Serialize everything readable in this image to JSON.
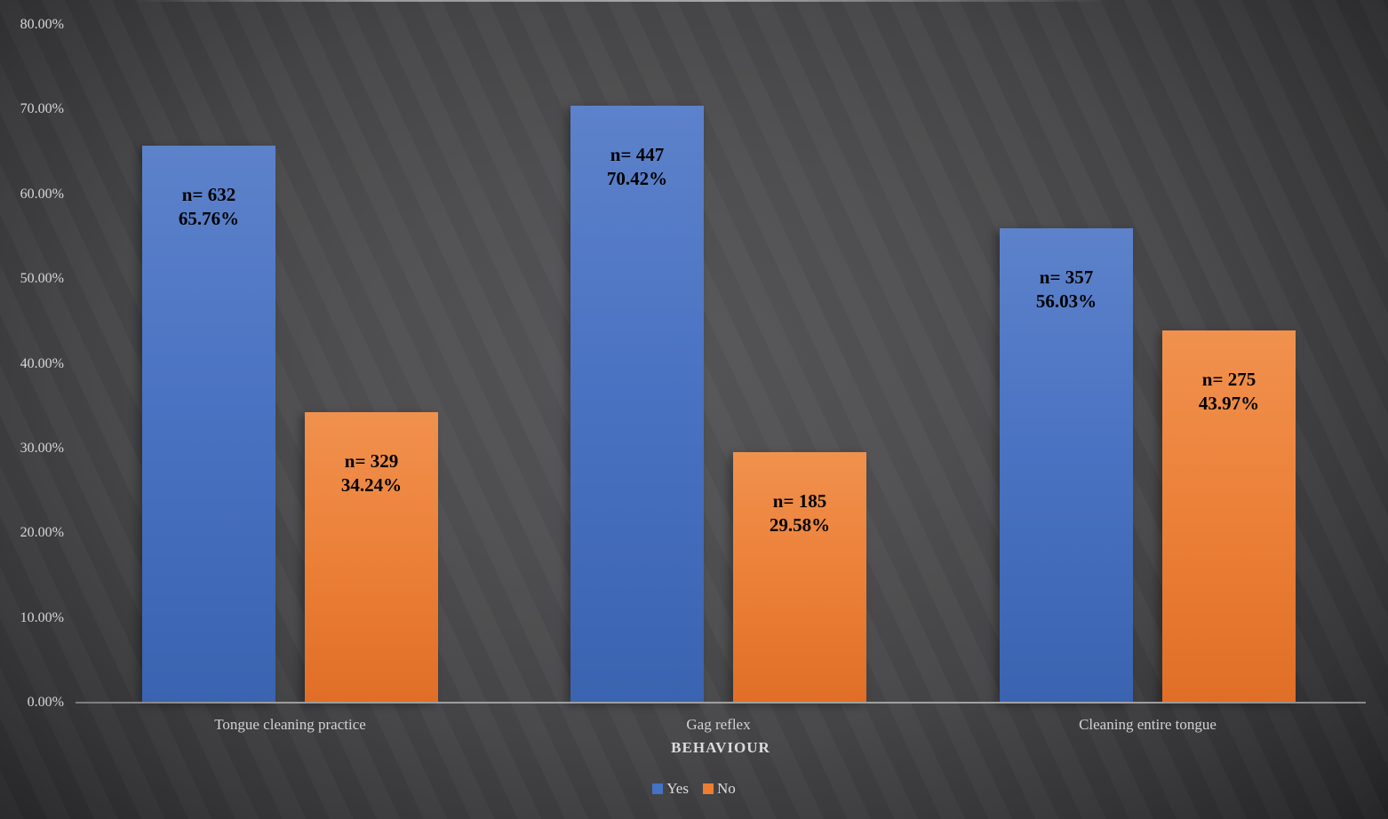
{
  "chart_data": {
    "type": "bar",
    "title": "",
    "categories": [
      "Tongue cleaning practice",
      "Gag reflex",
      "Cleaning entire tongue"
    ],
    "series": [
      {
        "name": "Yes",
        "color": "#4472C4",
        "values": [
          65.76,
          70.42,
          56.03
        ],
        "counts": [
          632,
          447,
          357
        ],
        "data_labels": [
          [
            "n= 632",
            "65.76%"
          ],
          [
            "n= 447",
            "70.42%"
          ],
          [
            "n= 357",
            "56.03%"
          ]
        ]
      },
      {
        "name": "No",
        "color": "#ED7D31",
        "values": [
          34.24,
          29.58,
          43.97
        ],
        "counts": [
          329,
          185,
          275
        ],
        "data_labels": [
          [
            "n= 329",
            "34.24%"
          ],
          [
            "n= 185",
            "29.58%"
          ],
          [
            "n= 275",
            "43.97%"
          ]
        ]
      }
    ],
    "xlabel": "BEHAVIOUR",
    "ylabel": "",
    "ylim": [
      0,
      80
    ],
    "ytick_step": 10,
    "ytick_labels": [
      "0.00%",
      "10.00%",
      "20.00%",
      "30.00%",
      "40.00%",
      "50.00%",
      "60.00%",
      "70.00%",
      "80.00%"
    ],
    "grid": false,
    "legend": {
      "position": "bottom",
      "entries": [
        {
          "label": "Yes",
          "color": "#4472C4"
        },
        {
          "label": "No",
          "color": "#ED7D31"
        }
      ]
    }
  },
  "style_colors": {
    "background_center": "#565658",
    "background_edge": "#1e1e20",
    "axis_line": "#989898",
    "tick_text": "#d8d8d8",
    "data_label_text": "#000000"
  }
}
